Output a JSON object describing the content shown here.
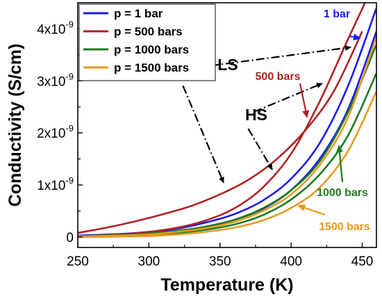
{
  "chart_data": {
    "type": "line",
    "xlabel": "Temperature (K)",
    "ylabel": "Conductivity (S/cm)",
    "xlim": [
      250,
      460
    ],
    "ylim": [
      -2e-10,
      4.5e-09
    ],
    "xticks": [
      250,
      300,
      350,
      400,
      450
    ],
    "xtick_labels": [
      "250",
      "300",
      "350",
      "400",
      "450"
    ],
    "yticks": [
      0,
      1e-09,
      2e-09,
      3e-09,
      4e-09
    ],
    "ytick_labels": [
      {
        "base": "0",
        "exp": ""
      },
      {
        "base": "1x10",
        "exp": "-9"
      },
      {
        "base": "2x10",
        "exp": "-9"
      },
      {
        "base": "3x10",
        "exp": "-9"
      },
      {
        "base": "4x10",
        "exp": "-9"
      }
    ],
    "legend": {
      "placement": "top-left",
      "entries": [
        {
          "label": "p = 1 bar",
          "color": "#1a1aff"
        },
        {
          "label": "p = 500 bars",
          "color": "#b22222"
        },
        {
          "label": "p = 1000 bars",
          "color": "#1e7a1e"
        },
        {
          "label": "p = 1500 bars",
          "color": "#e69a1c"
        }
      ]
    },
    "series": [
      {
        "name": "p = 1 bar",
        "branch": "LS",
        "color": "#1a1aff",
        "points": [
          [
            250,
            3e-11
          ],
          [
            280,
            6e-11
          ],
          [
            300,
            1e-10
          ],
          [
            320,
            1.6e-10
          ],
          [
            340,
            2.8e-10
          ],
          [
            360,
            4.4e-10
          ],
          [
            380,
            7e-10
          ],
          [
            400,
            1.12e-09
          ],
          [
            420,
            1.8e-09
          ],
          [
            440,
            2.9e-09
          ],
          [
            460,
            4.4e-09
          ]
        ]
      },
      {
        "name": "p = 1 bar",
        "branch": "HS",
        "color": "#1a1aff",
        "points": [
          [
            250,
            2e-11
          ],
          [
            280,
            4e-11
          ],
          [
            300,
            7e-11
          ],
          [
            320,
            1.2e-10
          ],
          [
            340,
            2e-10
          ],
          [
            360,
            3.3e-10
          ],
          [
            380,
            5.4e-10
          ],
          [
            400,
            9e-10
          ],
          [
            420,
            1.5e-09
          ],
          [
            440,
            2.45e-09
          ],
          [
            460,
            3.95e-09
          ]
        ]
      },
      {
        "name": "p = 500 bars",
        "branch": "LS",
        "color": "#b22222",
        "points": [
          [
            250,
            8e-11
          ],
          [
            270,
            1.8e-10
          ],
          [
            290,
            3e-10
          ],
          [
            310,
            4.4e-10
          ],
          [
            330,
            6e-10
          ],
          [
            350,
            8.2e-10
          ],
          [
            370,
            1.1e-09
          ],
          [
            390,
            1.5e-09
          ],
          [
            410,
            2.05e-09
          ],
          [
            430,
            2.8e-09
          ],
          [
            450,
            3.95e-09
          ]
        ]
      },
      {
        "name": "p = 500 bars",
        "branch": "HS",
        "color": "#b22222",
        "points": [
          [
            250,
            2e-11
          ],
          [
            280,
            5e-11
          ],
          [
            300,
            1e-10
          ],
          [
            320,
            1.8e-10
          ],
          [
            340,
            3.2e-10
          ],
          [
            360,
            5.5e-10
          ],
          [
            380,
            9.5e-10
          ],
          [
            400,
            1.6e-09
          ],
          [
            420,
            2.6e-09
          ],
          [
            440,
            3.8e-09
          ],
          [
            452,
            4.5e-09
          ]
        ]
      },
      {
        "name": "p = 1000 bars",
        "branch": "LS",
        "color": "#1e7a1e",
        "points": [
          [
            250,
            2e-11
          ],
          [
            280,
            4e-11
          ],
          [
            300,
            7e-11
          ],
          [
            320,
            1.2e-10
          ],
          [
            340,
            2e-10
          ],
          [
            360,
            3.3e-10
          ],
          [
            380,
            5.5e-10
          ],
          [
            400,
            9e-10
          ],
          [
            420,
            1.45e-09
          ],
          [
            440,
            2.4e-09
          ],
          [
            460,
            3.7e-09
          ]
        ]
      },
      {
        "name": "p = 1000 bars",
        "branch": "HS",
        "color": "#1e7a1e",
        "points": [
          [
            250,
            1e-11
          ],
          [
            280,
            2e-11
          ],
          [
            300,
            4e-11
          ],
          [
            320,
            8e-11
          ],
          [
            340,
            1.4e-10
          ],
          [
            360,
            2.4e-10
          ],
          [
            380,
            4.2e-10
          ],
          [
            400,
            7.2e-10
          ],
          [
            420,
            1.2e-09
          ],
          [
            440,
            1.95e-09
          ],
          [
            460,
            3.15e-09
          ]
        ]
      },
      {
        "name": "p = 1500 bars",
        "branch": "LS",
        "color": "#e69a1c",
        "points": [
          [
            250,
            1e-11
          ],
          [
            280,
            3e-11
          ],
          [
            300,
            5e-11
          ],
          [
            320,
            1e-10
          ],
          [
            340,
            1.7e-10
          ],
          [
            360,
            2.9e-10
          ],
          [
            380,
            5e-10
          ],
          [
            400,
            8.2e-10
          ],
          [
            420,
            1.38e-09
          ],
          [
            440,
            2.3e-09
          ],
          [
            460,
            3.85e-09
          ]
        ]
      },
      {
        "name": "p = 1500 bars",
        "branch": "HS",
        "color": "#e69a1c",
        "points": [
          [
            250,
            0.0
          ],
          [
            280,
            1e-11
          ],
          [
            300,
            2e-11
          ],
          [
            320,
            5e-11
          ],
          [
            340,
            1e-10
          ],
          [
            360,
            1.8e-10
          ],
          [
            380,
            3.2e-10
          ],
          [
            400,
            5.6e-10
          ],
          [
            420,
            9.5e-10
          ],
          [
            440,
            1.65e-09
          ],
          [
            460,
            2.8e-09
          ]
        ]
      }
    ],
    "annotations": [
      {
        "text": "1 bar",
        "color": "#1a1aff",
        "x": 445,
        "y": 4.1e-09
      },
      {
        "text": "500 bars",
        "color": "#b22222",
        "x": 422,
        "y": 2.95e-09
      },
      {
        "text": "1000 bars",
        "color": "#1e7a1e",
        "x": 445,
        "y": 6e-10
      },
      {
        "text": "1500 bars",
        "color": "#e69a1c",
        "x": 448,
        "y": 1.5e-10
      },
      {
        "text": "LS",
        "color": "#000000",
        "x": 322,
        "y": 3.2e-09
      },
      {
        "text": "HS",
        "color": "#000000",
        "x": 362,
        "y": 2.27e-09
      }
    ]
  }
}
